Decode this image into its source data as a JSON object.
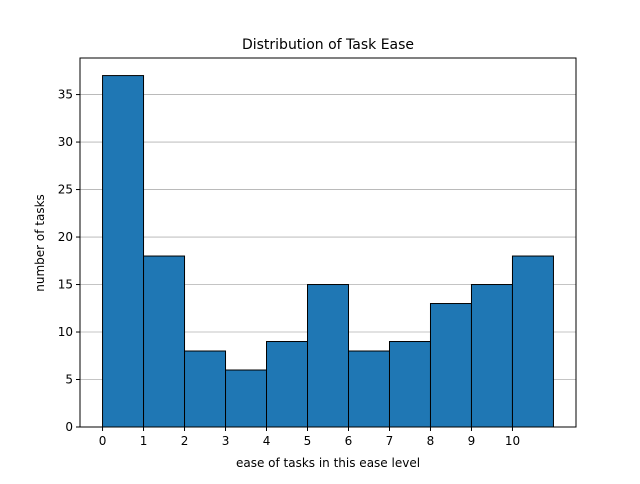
{
  "chart_data": {
    "type": "bar",
    "title": "Distribution of Task Ease",
    "xlabel": "ease of tasks in this ease level",
    "ylabel": "number of tasks",
    "bins": [
      {
        "start": 0,
        "end": 1,
        "value": 37
      },
      {
        "start": 1,
        "end": 2,
        "value": 18
      },
      {
        "start": 2,
        "end": 3,
        "value": 8
      },
      {
        "start": 3,
        "end": 4,
        "value": 6
      },
      {
        "start": 4,
        "end": 5,
        "value": 9
      },
      {
        "start": 5,
        "end": 6,
        "value": 15
      },
      {
        "start": 6,
        "end": 7,
        "value": 8
      },
      {
        "start": 7,
        "end": 8,
        "value": 9
      },
      {
        "start": 8,
        "end": 9,
        "value": 13
      },
      {
        "start": 9,
        "end": 10,
        "value": 15
      },
      {
        "start": 10,
        "end": 11,
        "value": 18
      }
    ],
    "xticks": [
      "0",
      "1",
      "2",
      "3",
      "4",
      "5",
      "6",
      "7",
      "8",
      "9",
      "10"
    ],
    "yticks": [
      "0",
      "5",
      "10",
      "15",
      "20",
      "25",
      "30",
      "35"
    ],
    "xlim": [
      -0.55,
      11.55
    ],
    "ylim": [
      0,
      38.85
    ],
    "grid": "horizontal",
    "legend": "none",
    "colors": {
      "bar_fill": "#1f77b4",
      "bar_edge": "#000000",
      "grid": "#b0b0b0"
    }
  }
}
